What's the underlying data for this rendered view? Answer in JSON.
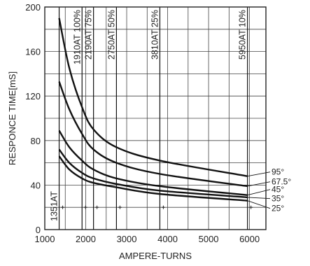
{
  "chart_data": {
    "type": "line",
    "title": "",
    "xlabel": "AMPERE-TURNS",
    "ylabel": "RESPONCE TIME[mS]",
    "xlim": [
      1000,
      6400
    ],
    "ylim": [
      0,
      200
    ],
    "x_ticks": [
      "1000",
      "2000",
      "3000",
      "4000",
      "5000",
      "6000"
    ],
    "y_ticks": [
      "0",
      "40",
      "80",
      "120",
      "160",
      "200"
    ],
    "grid": true,
    "reference_lines": [
      {
        "x": 1351,
        "label": "1351AT"
      },
      {
        "x": 1910,
        "label": "1910AT 100%"
      },
      {
        "x": 2190,
        "label": "2190AT 75%"
      },
      {
        "x": 2750,
        "label": "2750AT 50%"
      },
      {
        "x": 3810,
        "label": "3810AT 25%"
      },
      {
        "x": 5950,
        "label": "5950AT 10%"
      }
    ],
    "marker_y": 20,
    "series": [
      {
        "name": "95°",
        "x": [
          1351,
          1600,
          1910,
          2190,
          2750,
          3810,
          5950
        ],
        "values": [
          190,
          145,
          110,
          90,
          74,
          62,
          48
        ]
      },
      {
        "name": "67.5°",
        "x": [
          1351,
          1600,
          1910,
          2190,
          2750,
          3810,
          5950
        ],
        "values": [
          133,
          108,
          86,
          72,
          60,
          50,
          39
        ]
      },
      {
        "name": "45°",
        "x": [
          1351,
          1600,
          1910,
          2190,
          2750,
          3810,
          5950
        ],
        "values": [
          89,
          74,
          62,
          54,
          46,
          39,
          31
        ]
      },
      {
        "name": "35°",
        "x": [
          1351,
          1600,
          1910,
          2190,
          2750,
          3810,
          5950
        ],
        "values": [
          72,
          60,
          51,
          46,
          41,
          35,
          29
        ]
      },
      {
        "name": "25°",
        "x": [
          1351,
          1600,
          1910,
          2190,
          2750,
          3810,
          5950
        ],
        "values": [
          66,
          54,
          46,
          42,
          38,
          32,
          26
        ]
      }
    ]
  }
}
